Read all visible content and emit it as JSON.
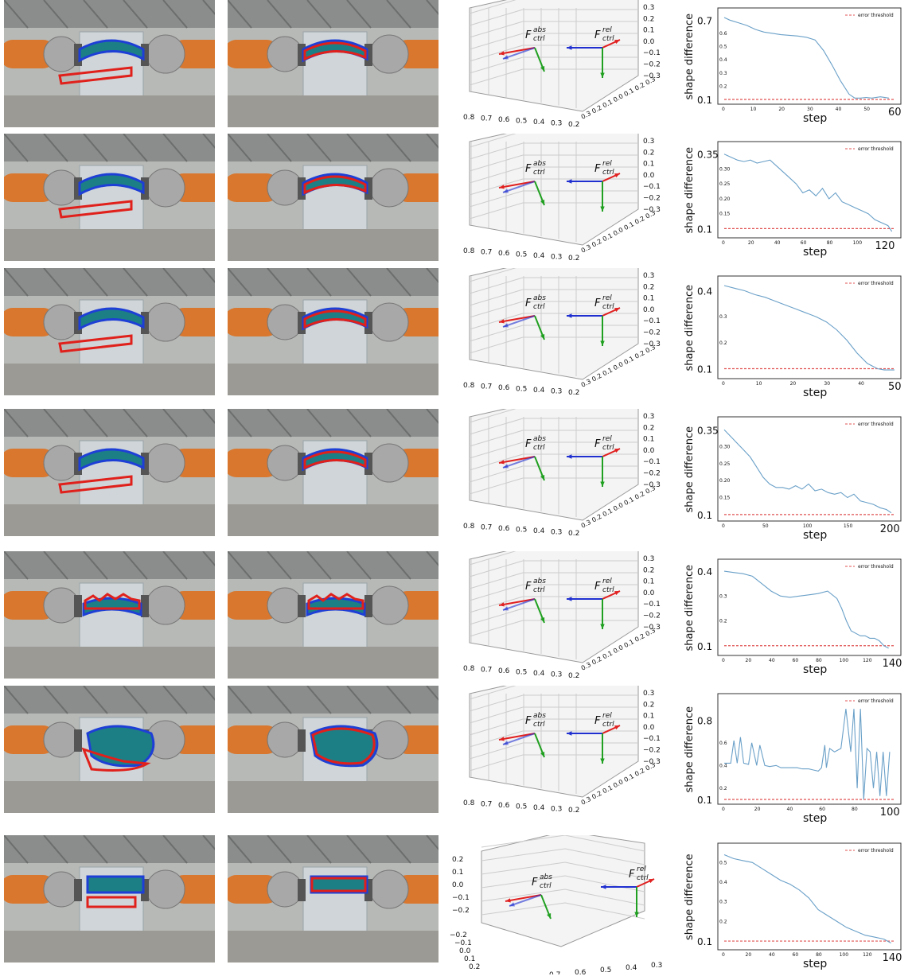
{
  "figure": {
    "colors": {
      "before_contour": "#e0201b",
      "after_contour": "#1e3fd6",
      "object_fill": "#1d7f86",
      "robot_orange": "#d9772e",
      "robot_silver": "#a8a8a8",
      "curve_line": "#6aa0c8",
      "threshold_line": "#e05050",
      "arrow_red": "#e02020",
      "arrow_blue": "#2030d0",
      "arrow_green": "#20a020"
    },
    "plot3d_common": {
      "z_ticks": [
        "0.3",
        "0.2",
        "0.1",
        "0.0",
        "−0.1",
        "−0.2",
        "−0.3"
      ],
      "x_ticks": [
        "0.8",
        "0.7",
        "0.6",
        "0.5",
        "0.4",
        "0.3",
        "0.2"
      ],
      "y_ticks_text": "0.3 0.2 0.1 0.0 0.1 0.2 0.3",
      "label_abs": "F",
      "label_abs_sup": "abs",
      "label_abs_sub": "ctrl",
      "label_rel": "F",
      "label_rel_sup": "rel",
      "label_rel_sub": "ctrl"
    },
    "plot3d_last": {
      "z_ticks": [
        "0.2",
        "0.1",
        "0.0",
        "−0.1",
        "−0.2"
      ],
      "y_ticks": [
        "−0.2",
        "−0.1",
        "0.0",
        "0.1",
        "0.2"
      ],
      "x_ticks": [
        "0.7",
        "0.6",
        "0.5",
        "0.4",
        "0.3"
      ]
    },
    "curves_common": {
      "ylabel": "shape difference",
      "xlabel": "step",
      "legend": "error threshold"
    },
    "rows": [
      {
        "object": "bent-tube",
        "chart_data": {
          "type": "line",
          "xmax_label": "60",
          "xlim": [
            0,
            60
          ],
          "ylim": [
            0.1,
            0.72
          ],
          "ytick_big": [
            "0.7",
            "0.1"
          ],
          "ytick_small": [
            "0.6",
            "0.5",
            "0.4",
            "0.3",
            "0.2"
          ],
          "xtick_small": [
            "0",
            "10",
            "20",
            "30",
            "40",
            "50"
          ],
          "threshold": 0.1,
          "x": [
            0,
            2,
            5,
            8,
            11,
            14,
            17,
            20,
            23,
            26,
            29,
            32,
            35,
            38,
            41,
            44,
            46,
            48,
            50,
            52,
            55,
            58
          ],
          "y": [
            0.72,
            0.7,
            0.68,
            0.66,
            0.63,
            0.61,
            0.6,
            0.59,
            0.585,
            0.58,
            0.57,
            0.55,
            0.47,
            0.36,
            0.24,
            0.14,
            0.11,
            0.11,
            0.115,
            0.11,
            0.12,
            0.11
          ]
        }
      },
      {
        "object": "bent-tube",
        "chart_data": {
          "type": "line",
          "xmax_label": "120",
          "xlim": [
            0,
            130
          ],
          "ylim": [
            0.085,
            0.36
          ],
          "ytick_big": [
            "0.35",
            "0.1"
          ],
          "ytick_small": [
            "0.30",
            "0.25",
            "0.20",
            "0.15"
          ],
          "xtick_small": [
            "0",
            "20",
            "40",
            "60",
            "80",
            "100"
          ],
          "threshold": 0.1,
          "x": [
            0,
            5,
            10,
            15,
            20,
            25,
            30,
            35,
            40,
            45,
            50,
            55,
            60,
            65,
            70,
            75,
            80,
            85,
            90,
            95,
            100,
            105,
            110,
            115,
            120,
            125,
            128
          ],
          "y": [
            0.35,
            0.34,
            0.33,
            0.325,
            0.33,
            0.32,
            0.325,
            0.33,
            0.31,
            0.29,
            0.27,
            0.25,
            0.22,
            0.23,
            0.21,
            0.235,
            0.2,
            0.22,
            0.19,
            0.18,
            0.17,
            0.16,
            0.15,
            0.13,
            0.12,
            0.11,
            0.09
          ]
        }
      },
      {
        "object": "bent-tube",
        "chart_data": {
          "type": "line",
          "xmax_label": "50",
          "xlim": [
            0,
            50
          ],
          "ylim": [
            0.08,
            0.42
          ],
          "ytick_big": [
            "0.4",
            "0.1"
          ],
          "ytick_small": [
            "0.3",
            "0.2"
          ],
          "xtick_small": [
            "0",
            "10",
            "20",
            "30",
            "40"
          ],
          "threshold": 0.1,
          "x": [
            0,
            3,
            6,
            9,
            12,
            15,
            18,
            21,
            24,
            27,
            30,
            33,
            36,
            39,
            42,
            45,
            47,
            50
          ],
          "y": [
            0.42,
            0.41,
            0.4,
            0.385,
            0.375,
            0.36,
            0.345,
            0.33,
            0.315,
            0.3,
            0.28,
            0.25,
            0.21,
            0.16,
            0.12,
            0.1,
            0.095,
            0.095
          ]
        }
      },
      {
        "object": "bent-tube",
        "chart_data": {
          "type": "line",
          "xmax_label": "200",
          "xlim": [
            0,
            210
          ],
          "ylim": [
            0.095,
            0.36
          ],
          "ytick_big": [
            "0.35",
            "0.1"
          ],
          "ytick_small": [
            "0.30",
            "0.25",
            "0.20",
            "0.15"
          ],
          "xtick_small": [
            "0",
            "50",
            "100",
            "150"
          ],
          "threshold": 0.1,
          "x": [
            0,
            8,
            16,
            24,
            32,
            40,
            48,
            56,
            64,
            72,
            80,
            88,
            96,
            104,
            112,
            120,
            128,
            136,
            144,
            152,
            160,
            168,
            176,
            184,
            192,
            200,
            206
          ],
          "y": [
            0.35,
            0.33,
            0.31,
            0.29,
            0.27,
            0.24,
            0.21,
            0.19,
            0.18,
            0.18,
            0.175,
            0.185,
            0.175,
            0.19,
            0.17,
            0.175,
            0.165,
            0.16,
            0.165,
            0.15,
            0.16,
            0.14,
            0.135,
            0.13,
            0.12,
            0.115,
            0.105
          ]
        }
      },
      {
        "object": "rope",
        "chart_data": {
          "type": "line",
          "xmax_label": "140",
          "xlim": [
            0,
            145
          ],
          "ylim": [
            0.08,
            0.41
          ],
          "ytick_big": [
            "0.4",
            "0.1"
          ],
          "ytick_small": [
            "0.3",
            "0.2"
          ],
          "xtick_small": [
            "0",
            "20",
            "40",
            "60",
            "80",
            "100",
            "120"
          ],
          "threshold": 0.1,
          "x": [
            0,
            8,
            16,
            24,
            32,
            40,
            48,
            56,
            64,
            72,
            80,
            88,
            96,
            100,
            104,
            108,
            112,
            116,
            120,
            124,
            128,
            132,
            136,
            140
          ],
          "y": [
            0.4,
            0.395,
            0.39,
            0.38,
            0.35,
            0.32,
            0.3,
            0.295,
            0.3,
            0.305,
            0.31,
            0.32,
            0.29,
            0.25,
            0.2,
            0.16,
            0.15,
            0.14,
            0.14,
            0.13,
            0.13,
            0.12,
            0.1,
            0.09
          ]
        }
      },
      {
        "object": "towel",
        "chart_data": {
          "type": "line",
          "xmax_label": "100",
          "xlim": [
            0,
            105
          ],
          "ylim": [
            0.1,
            0.95
          ],
          "ytick_big": [
            "0.8",
            "0.1"
          ],
          "ytick_small": [
            "0.6",
            "0.4",
            "0.2"
          ],
          "xtick_small": [
            "0",
            "20",
            "40",
            "60",
            "80"
          ],
          "threshold": 0.1,
          "x": [
            0,
            4,
            6,
            8,
            10,
            12,
            15,
            17,
            20,
            22,
            25,
            28,
            32,
            35,
            38,
            42,
            45,
            48,
            52,
            55,
            58,
            60,
            62,
            63,
            65,
            68,
            72,
            75,
            78,
            80,
            82,
            84,
            86,
            88,
            90,
            92,
            94,
            96,
            98,
            100,
            102
          ],
          "y": [
            0.42,
            0.42,
            0.62,
            0.42,
            0.65,
            0.42,
            0.41,
            0.6,
            0.4,
            0.58,
            0.4,
            0.39,
            0.4,
            0.38,
            0.38,
            0.38,
            0.38,
            0.37,
            0.37,
            0.36,
            0.35,
            0.38,
            0.58,
            0.38,
            0.55,
            0.52,
            0.55,
            0.9,
            0.52,
            0.9,
            0.2,
            0.9,
            0.1,
            0.55,
            0.52,
            0.2,
            0.52,
            0.13,
            0.52,
            0.13,
            0.52
          ]
        }
      },
      {
        "object": "box",
        "chart_data": {
          "type": "line",
          "xmax_label": "140",
          "xlim": [
            0,
            145
          ],
          "ylim": [
            0.08,
            0.55
          ],
          "ytick_big": [
            "0.1"
          ],
          "ytick_small": [
            "0.5",
            "0.4",
            "0.3",
            "0.2"
          ],
          "xtick_small": [
            "0",
            "20",
            "40",
            "60",
            "80",
            "100",
            "120"
          ],
          "threshold": 0.1,
          "x": [
            0,
            8,
            16,
            24,
            32,
            40,
            48,
            56,
            64,
            72,
            80,
            88,
            96,
            104,
            112,
            120,
            128,
            136,
            142
          ],
          "y": [
            0.54,
            0.52,
            0.51,
            0.5,
            0.47,
            0.44,
            0.41,
            0.39,
            0.36,
            0.32,
            0.26,
            0.23,
            0.2,
            0.17,
            0.15,
            0.13,
            0.12,
            0.11,
            0.09
          ]
        }
      }
    ]
  }
}
